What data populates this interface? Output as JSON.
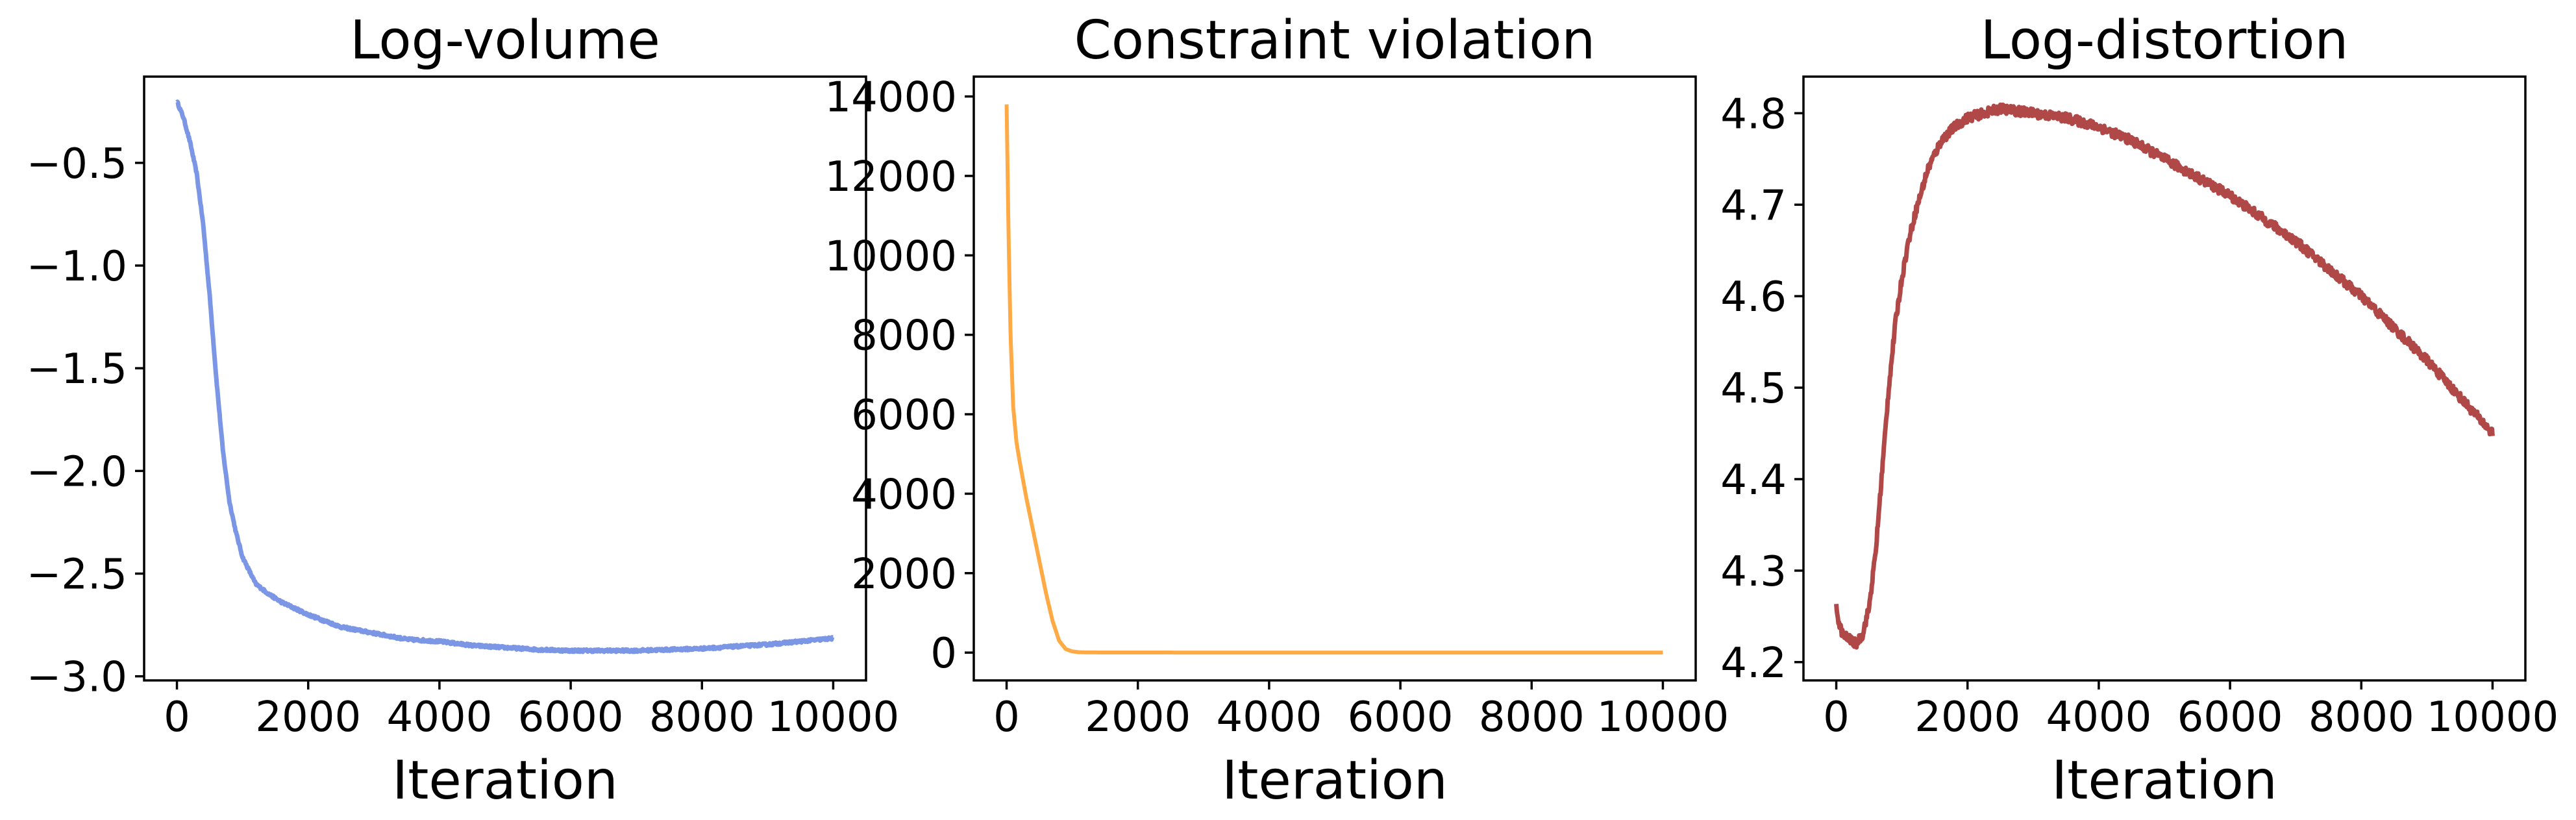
{
  "chart_data": [
    {
      "type": "line",
      "title": "Log-volume",
      "xlabel": "Iteration",
      "ylabel": "",
      "xlim": [
        -500,
        10500
      ],
      "ylim": [
        -3.02,
        -0.08
      ],
      "xticks": [
        0,
        2000,
        4000,
        6000,
        8000,
        10000
      ],
      "xtick_labels": [
        "0",
        "2000",
        "4000",
        "6000",
        "8000",
        "10000"
      ],
      "yticks": [
        -0.5,
        -1.0,
        -1.5,
        -2.0,
        -2.5,
        -3.0
      ],
      "ytick_labels": [
        "−0.5",
        "−1.0",
        "−1.5",
        "−2.0",
        "−2.5",
        "−3.0"
      ],
      "grid": false,
      "series": [
        {
          "color": "#7b96e4",
          "noise": 0.006,
          "x": [
            0,
            100,
            200,
            300,
            400,
            500,
            600,
            700,
            800,
            900,
            1000,
            1200,
            1400,
            1600,
            1800,
            2000,
            2500,
            3000,
            3500,
            4000,
            4500,
            5000,
            5500,
            6000,
            6500,
            7000,
            7500,
            8000,
            8500,
            9000,
            9500,
            10000
          ],
          "y": [
            -0.2,
            -0.28,
            -0.4,
            -0.55,
            -0.8,
            -1.15,
            -1.55,
            -1.9,
            -2.15,
            -2.3,
            -2.42,
            -2.55,
            -2.6,
            -2.64,
            -2.67,
            -2.7,
            -2.76,
            -2.79,
            -2.82,
            -2.83,
            -2.85,
            -2.86,
            -2.87,
            -2.875,
            -2.875,
            -2.875,
            -2.87,
            -2.865,
            -2.855,
            -2.845,
            -2.83,
            -2.815
          ]
        }
      ]
    },
    {
      "type": "line",
      "title": "Constraint violation",
      "xlabel": "Iteration",
      "ylabel": "",
      "xlim": [
        -500,
        10500
      ],
      "ylim": [
        -700,
        14500
      ],
      "xticks": [
        0,
        2000,
        4000,
        6000,
        8000,
        10000
      ],
      "xtick_labels": [
        "0",
        "2000",
        "4000",
        "6000",
        "8000",
        "10000"
      ],
      "yticks": [
        0,
        2000,
        4000,
        6000,
        8000,
        10000,
        12000,
        14000
      ],
      "ytick_labels": [
        "0",
        "2000",
        "4000",
        "6000",
        "8000",
        "10000",
        "12000",
        "14000"
      ],
      "grid": false,
      "series": [
        {
          "color": "#ffaa44",
          "noise": 0,
          "x": [
            0,
            30,
            60,
            100,
            150,
            200,
            300,
            400,
            500,
            600,
            700,
            800,
            900,
            1000,
            1100,
            1200,
            1500,
            2000,
            4000,
            6000,
            8000,
            10000
          ],
          "y": [
            13800,
            10500,
            8000,
            6200,
            5300,
            4800,
            3900,
            3100,
            2300,
            1500,
            800,
            300,
            90,
            30,
            10,
            5,
            3,
            2,
            1,
            1,
            1,
            1
          ]
        }
      ]
    },
    {
      "type": "line",
      "title": "Log-distortion",
      "xlabel": "Iteration",
      "ylabel": "",
      "xlim": [
        -500,
        10500
      ],
      "ylim": [
        4.18,
        4.84
      ],
      "xticks": [
        0,
        2000,
        4000,
        6000,
        8000,
        10000
      ],
      "xtick_labels": [
        "0",
        "2000",
        "4000",
        "6000",
        "8000",
        "10000"
      ],
      "yticks": [
        4.2,
        4.3,
        4.4,
        4.5,
        4.6,
        4.7,
        4.8
      ],
      "ytick_labels": [
        "4.2",
        "4.3",
        "4.4",
        "4.5",
        "4.6",
        "4.7",
        "4.8"
      ],
      "grid": false,
      "series": [
        {
          "color": "#b04848",
          "noise": 0.005,
          "x": [
            0,
            50,
            100,
            200,
            300,
            400,
            500,
            600,
            700,
            800,
            900,
            1000,
            1100,
            1200,
            1400,
            1600,
            1800,
            2000,
            2500,
            3000,
            3500,
            4000,
            4500,
            5000,
            5500,
            6000,
            6500,
            7000,
            7500,
            8000,
            8500,
            9000,
            9500,
            10000
          ],
          "y": [
            4.26,
            4.24,
            4.23,
            4.225,
            4.22,
            4.23,
            4.26,
            4.32,
            4.41,
            4.5,
            4.57,
            4.62,
            4.66,
            4.69,
            4.74,
            4.77,
            4.785,
            4.795,
            4.805,
            4.8,
            4.795,
            4.785,
            4.77,
            4.75,
            4.73,
            4.71,
            4.685,
            4.66,
            4.63,
            4.6,
            4.565,
            4.53,
            4.49,
            4.45
          ]
        }
      ]
    }
  ]
}
